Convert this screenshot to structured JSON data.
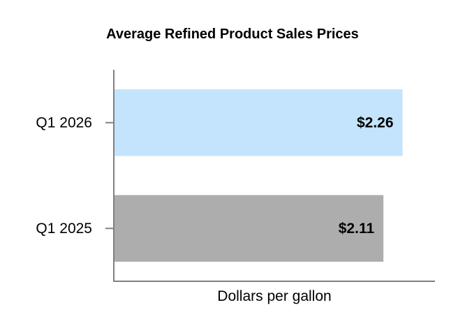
{
  "chart_data": {
    "type": "bar",
    "orientation": "horizontal",
    "title": "Average Refined Product Sales Prices",
    "xlabel": "Dollars per gallon",
    "ylabel": "",
    "categories": [
      "Q1 2026",
      "Q1 2025"
    ],
    "values": [
      2.26,
      2.11
    ],
    "data_labels": [
      "$2.26",
      "$2.11"
    ],
    "bar_colors": [
      "#c3e4fc",
      "#adadad"
    ],
    "xlim": [
      0,
      2.52
    ],
    "grid": false,
    "legend": "none"
  }
}
